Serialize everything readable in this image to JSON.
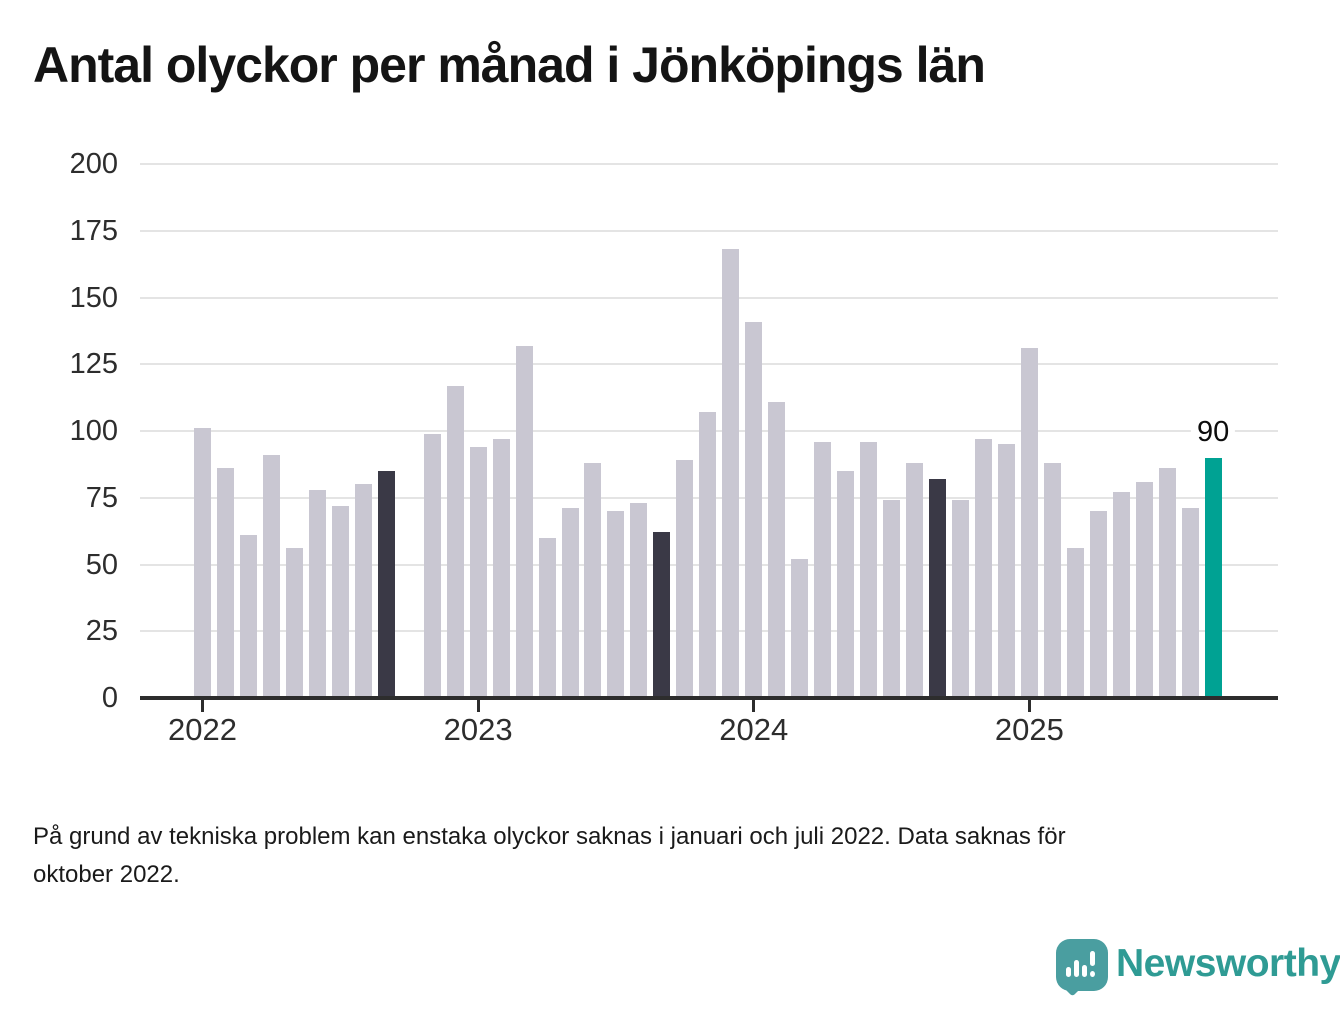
{
  "title": "Antal olyckor per månad i Jönköpings län",
  "chart_data": {
    "type": "bar",
    "title": "Antal olyckor per månad i Jönköpings län",
    "xlabel": "",
    "ylabel": "",
    "ylim": [
      0,
      200
    ],
    "y_ticks": [
      0,
      25,
      50,
      75,
      100,
      125,
      150,
      175,
      200
    ],
    "x_tick_labels": [
      "2022",
      "2023",
      "2024",
      "2025"
    ],
    "grid": "horizontal",
    "legend": "none",
    "missing_months": [
      "2022-10"
    ],
    "annotation": {
      "text": "90",
      "month": "2025-09"
    },
    "colors": {
      "normal": "#c9c7d2",
      "dark": "#3a3946",
      "highlight": "#00a293"
    },
    "series": [
      {
        "month": "2022-01",
        "value": 101,
        "state": "normal"
      },
      {
        "month": "2022-02",
        "value": 86,
        "state": "normal"
      },
      {
        "month": "2022-03",
        "value": 61,
        "state": "normal"
      },
      {
        "month": "2022-04",
        "value": 91,
        "state": "normal"
      },
      {
        "month": "2022-05",
        "value": 56,
        "state": "normal"
      },
      {
        "month": "2022-06",
        "value": 78,
        "state": "normal"
      },
      {
        "month": "2022-07",
        "value": 72,
        "state": "normal"
      },
      {
        "month": "2022-08",
        "value": 80,
        "state": "normal"
      },
      {
        "month": "2022-09",
        "value": 85,
        "state": "dark"
      },
      {
        "month": "2022-11",
        "value": 99,
        "state": "normal"
      },
      {
        "month": "2022-12",
        "value": 117,
        "state": "normal"
      },
      {
        "month": "2023-01",
        "value": 94,
        "state": "normal"
      },
      {
        "month": "2023-02",
        "value": 97,
        "state": "normal"
      },
      {
        "month": "2023-03",
        "value": 132,
        "state": "normal"
      },
      {
        "month": "2023-04",
        "value": 60,
        "state": "normal"
      },
      {
        "month": "2023-05",
        "value": 71,
        "state": "normal"
      },
      {
        "month": "2023-06",
        "value": 88,
        "state": "normal"
      },
      {
        "month": "2023-07",
        "value": 70,
        "state": "normal"
      },
      {
        "month": "2023-08",
        "value": 73,
        "state": "normal"
      },
      {
        "month": "2023-09",
        "value": 62,
        "state": "dark"
      },
      {
        "month": "2023-10",
        "value": 89,
        "state": "normal"
      },
      {
        "month": "2023-11",
        "value": 107,
        "state": "normal"
      },
      {
        "month": "2023-12",
        "value": 168,
        "state": "normal"
      },
      {
        "month": "2024-01",
        "value": 141,
        "state": "normal"
      },
      {
        "month": "2024-02",
        "value": 111,
        "state": "normal"
      },
      {
        "month": "2024-03",
        "value": 52,
        "state": "normal"
      },
      {
        "month": "2024-04",
        "value": 96,
        "state": "normal"
      },
      {
        "month": "2024-05",
        "value": 85,
        "state": "normal"
      },
      {
        "month": "2024-06",
        "value": 96,
        "state": "normal"
      },
      {
        "month": "2024-07",
        "value": 74,
        "state": "normal"
      },
      {
        "month": "2024-08",
        "value": 88,
        "state": "normal"
      },
      {
        "month": "2024-09",
        "value": 82,
        "state": "dark"
      },
      {
        "month": "2024-10",
        "value": 74,
        "state": "normal"
      },
      {
        "month": "2024-11",
        "value": 97,
        "state": "normal"
      },
      {
        "month": "2024-12",
        "value": 95,
        "state": "normal"
      },
      {
        "month": "2025-01",
        "value": 131,
        "state": "normal"
      },
      {
        "month": "2025-02",
        "value": 88,
        "state": "normal"
      },
      {
        "month": "2025-03",
        "value": 56,
        "state": "normal"
      },
      {
        "month": "2025-04",
        "value": 70,
        "state": "normal"
      },
      {
        "month": "2025-05",
        "value": 77,
        "state": "normal"
      },
      {
        "month": "2025-06",
        "value": 81,
        "state": "normal"
      },
      {
        "month": "2025-07",
        "value": 86,
        "state": "normal"
      },
      {
        "month": "2025-08",
        "value": 71,
        "state": "normal"
      },
      {
        "month": "2025-09",
        "value": 90,
        "state": "highlight"
      }
    ]
  },
  "footnote": {
    "line1": "På grund av tekniska problem kan enstaka olyckor saknas i januari och juli 2022. Data saknas för",
    "line2": "oktober 2022."
  },
  "logo": {
    "text": "Newsworthy",
    "icon": "newsworthy-speech-bubble-chart-icon"
  }
}
